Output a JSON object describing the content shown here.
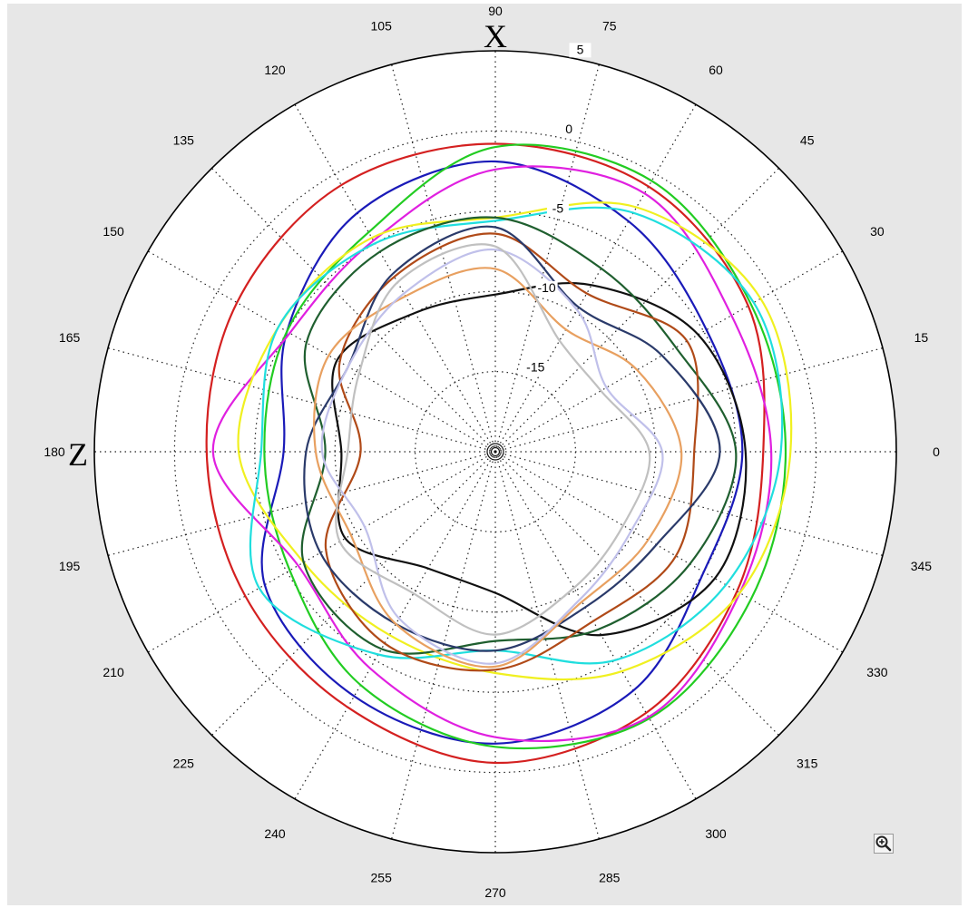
{
  "chart_data": {
    "type": "line",
    "coordinate_system": "polar",
    "angle_unit": "degrees",
    "angle_zero": "right",
    "angle_direction": "counterclockwise",
    "angle_ticks": [
      0,
      15,
      30,
      45,
      60,
      75,
      90,
      105,
      120,
      135,
      150,
      165,
      180,
      195,
      210,
      225,
      240,
      255,
      270,
      285,
      300,
      315,
      330,
      345
    ],
    "angle_tick_labels": [
      "0",
      "15",
      "30",
      "45",
      "60",
      "75",
      "90",
      "105",
      "120",
      "135",
      "150",
      "165",
      "180",
      "195",
      "210",
      "225",
      "240",
      "255",
      "270",
      "285",
      "300",
      "315",
      "330",
      "345"
    ],
    "radial_ticks": [
      5,
      0,
      -5,
      -10,
      -15
    ],
    "radial_tick_labels": [
      "5",
      "0",
      "-5",
      "-10",
      "-15"
    ],
    "rlim": [
      -20,
      5
    ],
    "axis_markers": {
      "x": "X",
      "z": "Z"
    },
    "grid": true,
    "legend": "none",
    "series": [
      {
        "color": "#d42020",
        "angles": [
          0,
          30,
          60,
          90,
          120,
          150,
          180,
          210,
          240,
          270,
          300,
          330
        ],
        "values": [
          -3.3,
          -1.8,
          -0.9,
          -0.8,
          -0.8,
          -1.4,
          -2.0,
          -2.0,
          -1.6,
          -0.6,
          -1.2,
          -2.6
        ]
      },
      {
        "color": "#1a1ab8",
        "angles": [
          0,
          30,
          60,
          90,
          120,
          150,
          180,
          210,
          240,
          270,
          300,
          330
        ],
        "values": [
          -4.6,
          -4.8,
          -3.4,
          -1.9,
          -2.8,
          -5.0,
          -6.8,
          -3.4,
          -2.4,
          -1.8,
          -2.8,
          -5.0
        ]
      },
      {
        "color": "#22cc22",
        "angles": [
          0,
          30,
          60,
          90,
          120,
          150,
          180,
          210,
          240,
          270,
          300,
          330
        ],
        "values": [
          -1.9,
          -1.6,
          -0.5,
          -1.0,
          -4.2,
          -5.0,
          -5.6,
          -5.2,
          -3.2,
          -1.6,
          -0.8,
          -1.6
        ]
      },
      {
        "color": "#e020e0",
        "angles": [
          0,
          30,
          60,
          90,
          120,
          150,
          180,
          210,
          240,
          270,
          300,
          330
        ],
        "values": [
          -2.8,
          -3.0,
          -1.4,
          -2.4,
          -4.8,
          -5.2,
          -2.4,
          -5.8,
          -4.4,
          -2.2,
          -0.9,
          -2.4
        ]
      },
      {
        "color": "#f0f020",
        "angles": [
          0,
          30,
          60,
          90,
          120,
          150,
          180,
          210,
          240,
          270,
          300,
          330
        ],
        "values": [
          -1.6,
          -0.9,
          -2.4,
          -5.4,
          -4.6,
          -4.4,
          -4.0,
          -6.2,
          -6.8,
          -6.2,
          -4.2,
          -2.4
        ]
      },
      {
        "color": "#20dede",
        "angles": [
          0,
          30,
          60,
          90,
          120,
          150,
          180,
          210,
          240,
          270,
          300,
          330
        ],
        "values": [
          -2.2,
          -1.4,
          -2.8,
          -5.6,
          -5.0,
          -4.4,
          -5.4,
          -3.0,
          -5.4,
          -7.6,
          -5.0,
          -3.4
        ]
      },
      {
        "color": "#101010",
        "angles": [
          0,
          30,
          60,
          90,
          120,
          150,
          180,
          210,
          240,
          270,
          300,
          330
        ],
        "values": [
          -4.4,
          -5.4,
          -8.0,
          -10.2,
          -10.0,
          -8.6,
          -10.4,
          -9.2,
          -11.6,
          -11.2,
          -6.8,
          -4.2
        ]
      },
      {
        "color": "#1f5f2f",
        "angles": [
          0,
          30,
          60,
          90,
          120,
          150,
          180,
          210,
          240,
          270,
          300,
          330
        ],
        "values": [
          -5.0,
          -7.0,
          -6.8,
          -5.4,
          -5.6,
          -6.4,
          -9.4,
          -6.2,
          -5.8,
          -8.2,
          -7.2,
          -6.0
        ]
      },
      {
        "color": "#b04a18",
        "angles": [
          0,
          30,
          60,
          90,
          120,
          150,
          180,
          210,
          240,
          270,
          300,
          330
        ],
        "values": [
          -7.6,
          -6.2,
          -8.6,
          -6.4,
          -7.4,
          -8.8,
          -11.6,
          -7.8,
          -6.2,
          -6.4,
          -7.8,
          -7.0
        ]
      },
      {
        "color": "#2a3a6a",
        "angles": [
          0,
          30,
          60,
          90,
          120,
          150,
          180,
          210,
          240,
          270,
          300,
          330
        ],
        "values": [
          -6.0,
          -8.0,
          -9.6,
          -6.0,
          -7.2,
          -9.4,
          -8.2,
          -7.4,
          -7.6,
          -7.6,
          -8.8,
          -8.4
        ]
      },
      {
        "color": "#e8a060",
        "angles": [
          0,
          30,
          60,
          90,
          120,
          150,
          180,
          210,
          240,
          270,
          300,
          330
        ],
        "values": [
          -8.4,
          -9.8,
          -11.2,
          -8.6,
          -8.8,
          -8.0,
          -8.8,
          -9.6,
          -7.6,
          -6.6,
          -9.2,
          -9.0
        ]
      },
      {
        "color": "#c0c0ea",
        "angles": [
          0,
          30,
          60,
          90,
          120,
          150,
          180,
          210,
          240,
          270,
          300,
          330
        ],
        "values": [
          -9.6,
          -12.0,
          -9.8,
          -7.4,
          -8.6,
          -9.4,
          -9.2,
          -10.6,
          -8.0,
          -6.8,
          -9.4,
          -10.2
        ]
      },
      {
        "color": "#c0c0c0",
        "angles": [
          0,
          30,
          60,
          90,
          120,
          150,
          180,
          210,
          240,
          270,
          300,
          330
        ],
        "values": [
          -10.4,
          -12.4,
          -12.0,
          -7.2,
          -7.8,
          -10.2,
          -10.8,
          -8.8,
          -9.8,
          -8.6,
          -10.2,
          -10.8
        ]
      }
    ]
  },
  "toolbar": {
    "zoom_icon": "zoom-in-icon"
  }
}
